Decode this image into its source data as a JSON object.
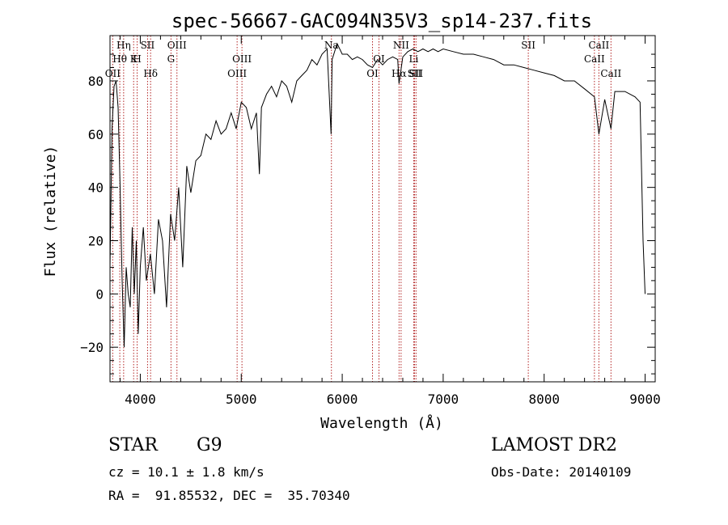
{
  "chart_data": {
    "type": "line",
    "title": "spec-56667-GAC094N35V3_sp14-237.fits",
    "xlabel": "Wavelength (Å)",
    "ylabel": "Flux (relative)",
    "xlim": [
      3700,
      9100
    ],
    "ylim": [
      -33,
      97
    ],
    "xticks": [
      4000,
      5000,
      6000,
      7000,
      8000,
      9000
    ],
    "yticks": [
      -20,
      0,
      20,
      40,
      60,
      80
    ],
    "series": [
      {
        "x": [
          3700,
          3720,
          3740,
          3760,
          3780,
          3800,
          3820,
          3840,
          3860,
          3880,
          3900,
          3920,
          3940,
          3960,
          3980,
          4000,
          4030,
          4060,
          4100,
          4140,
          4180,
          4220,
          4260,
          4300,
          4340,
          4380,
          4420,
          4460,
          4500,
          4550,
          4600,
          4650,
          4700,
          4750,
          4800,
          4850,
          4900,
          4950,
          5000,
          5050,
          5100,
          5150,
          5180,
          5200,
          5250,
          5300,
          5350,
          5400,
          5450,
          5500,
          5550,
          5600,
          5650,
          5700,
          5750,
          5800,
          5850,
          5890,
          5900,
          5950,
          6000,
          6050,
          6100,
          6150,
          6200,
          6250,
          6300,
          6350,
          6400,
          6450,
          6500,
          6550,
          6563,
          6600,
          6650,
          6700,
          6750,
          6800,
          6850,
          6900,
          6950,
          7000,
          7100,
          7200,
          7300,
          7400,
          7500,
          7600,
          7700,
          7800,
          7900,
          8000,
          8100,
          8200,
          8300,
          8400,
          8498,
          8542,
          8600,
          8662,
          8700,
          8800,
          8900,
          8950,
          8980,
          9000
        ],
        "y": [
          10,
          62,
          78,
          80,
          70,
          40,
          5,
          -20,
          10,
          0,
          -5,
          25,
          0,
          20,
          -15,
          10,
          25,
          5,
          15,
          0,
          28,
          20,
          -5,
          30,
          20,
          40,
          10,
          48,
          38,
          50,
          52,
          60,
          58,
          65,
          60,
          62,
          68,
          62,
          72,
          70,
          62,
          68,
          45,
          70,
          75,
          78,
          74,
          80,
          78,
          72,
          80,
          82,
          84,
          88,
          86,
          90,
          92,
          60,
          88,
          94,
          90,
          90,
          88,
          89,
          88,
          86,
          85,
          88,
          86,
          88,
          89,
          88,
          79,
          89,
          91,
          92,
          91,
          92,
          91,
          92,
          91,
          92,
          91,
          90,
          90,
          89,
          88,
          86,
          86,
          85,
          84,
          83,
          82,
          80,
          80,
          77,
          74,
          60,
          73,
          62,
          76,
          76,
          74,
          72,
          20,
          0
        ]
      }
    ],
    "spectral_lines": [
      {
        "label": "Hη",
        "x": 3835,
        "row": 0
      },
      {
        "label": "Hθ",
        "x": 3797,
        "row": 1
      },
      {
        "label": "OII",
        "x": 3727,
        "row": 2
      },
      {
        "label": "K",
        "x": 3934,
        "row": 1
      },
      {
        "label": "H",
        "x": 3969,
        "row": 1
      },
      {
        "label": "SII",
        "x": 4072,
        "row": 0
      },
      {
        "label": "Hδ",
        "x": 4102,
        "row": 2
      },
      {
        "label": "OIII",
        "x": 4363,
        "row": 0
      },
      {
        "label": "G",
        "x": 4304,
        "row": 1
      },
      {
        "label": "OIII",
        "x": 5007,
        "row": 1
      },
      {
        "label": "OIII",
        "x": 4959,
        "row": 2
      },
      {
        "label": "Na",
        "x": 5893,
        "row": 0
      },
      {
        "label": "OI",
        "x": 6300,
        "row": 2
      },
      {
        "label": "OI",
        "x": 6364,
        "row": 1
      },
      {
        "label": "NII",
        "x": 6583,
        "row": 0
      },
      {
        "label": "Hα",
        "x": 6563,
        "row": 2
      },
      {
        "label": "Li",
        "x": 6708,
        "row": 1
      },
      {
        "label": "SII",
        "x": 6716,
        "row": 2
      },
      {
        "label": "SII",
        "x": 6731,
        "row": 2
      },
      {
        "label": "SII",
        "x": 7843,
        "row": 0
      },
      {
        "label": "CaII",
        "x": 8498,
        "row": 1
      },
      {
        "label": "CaII",
        "x": 8542,
        "row": 0
      },
      {
        "label": "CaII",
        "x": 8662,
        "row": 2
      }
    ],
    "line_color": "#000000",
    "marker_color": "#b22222",
    "grid": false
  },
  "info": {
    "class_label": "STAR",
    "subclass_label": "G9",
    "survey": "LAMOST DR2",
    "cz": "cz = 10.1 ± 1.8 km/s",
    "obs_date": "Obs-Date: 20140109",
    "coords": "RA =  91.85532, DEC =  35.70340"
  }
}
